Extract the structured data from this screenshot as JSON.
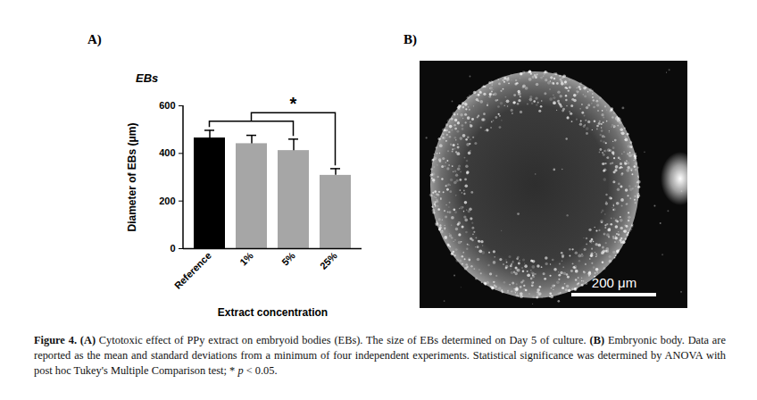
{
  "chart_data": {
    "type": "bar",
    "title": "EBs",
    "xlabel": "Extract concentration",
    "ylabel": "Diameter of EBs (μm)",
    "categories": [
      "Reference",
      "1%",
      "5%",
      "25%"
    ],
    "values": [
      465,
      441,
      412,
      308
    ],
    "errors": [
      32,
      35,
      48,
      28
    ],
    "colors": [
      "#000000",
      "#a6a6a6",
      "#a6a6a6",
      "#a6a6a6"
    ],
    "ylim": [
      0,
      600
    ],
    "yticks": [
      0,
      200,
      400,
      600
    ],
    "grid": false,
    "annotations": [
      {
        "text": "*",
        "from": [
          "Reference",
          "1%",
          "5%"
        ],
        "to": [
          "25%"
        ]
      }
    ]
  },
  "panels": {
    "a": "A)",
    "b": "B)"
  },
  "image": {
    "scale_bar": "200 μm"
  },
  "caption": [
    {
      "text": "Figure 4.",
      "bold": true
    },
    {
      "text": " (A)",
      "bold": true
    },
    {
      "text": " Cytotoxic effect of PPy extract on embryoid bodies (EBs). The size of EBs determined on Day 5 of culture. "
    },
    {
      "text": "(B)",
      "bold": true
    },
    {
      "text": " Embryonic body. Data are reported as the mean and standard deviations from a minimum of four independent experiments. Statistical significance was determined by ANOVA with post hoc Tukey's Multiple Comparison test; * "
    },
    {
      "text": "p",
      "italic": true
    },
    {
      "text": " < 0.05."
    }
  ]
}
